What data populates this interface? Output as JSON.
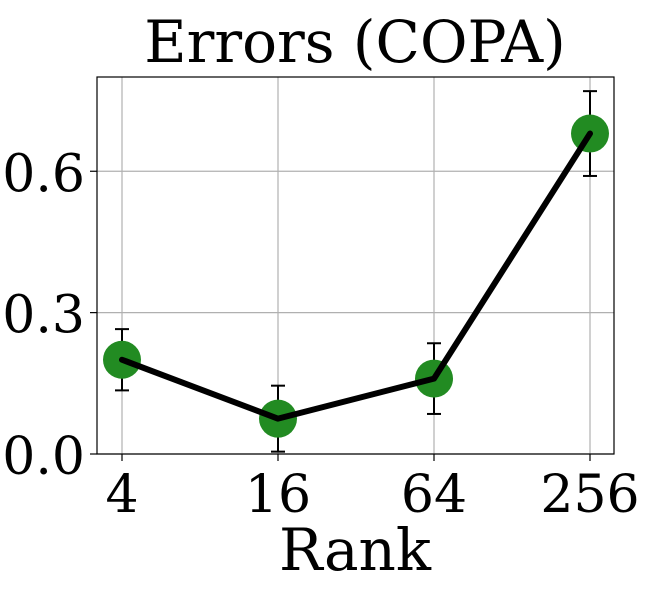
{
  "chart_data": {
    "type": "line",
    "title": "Errors (COPA)",
    "xlabel": "Rank",
    "ylabel": "",
    "x_scale": "log2",
    "x": [
      4,
      16,
      64,
      256
    ],
    "x_tick_labels": [
      "4",
      "16",
      "64",
      "256"
    ],
    "y_ticks": [
      0.0,
      0.3,
      0.6
    ],
    "y_tick_labels": [
      "0.0",
      "0.3",
      "0.6"
    ],
    "ylim": [
      0.0,
      0.8
    ],
    "grid": true,
    "series": [
      {
        "values": [
          0.2,
          0.075,
          0.16,
          0.68
        ],
        "error": [
          0.065,
          0.07,
          0.075,
          0.09
        ],
        "line_color": "#000000",
        "marker_color": "#228B22"
      }
    ]
  }
}
